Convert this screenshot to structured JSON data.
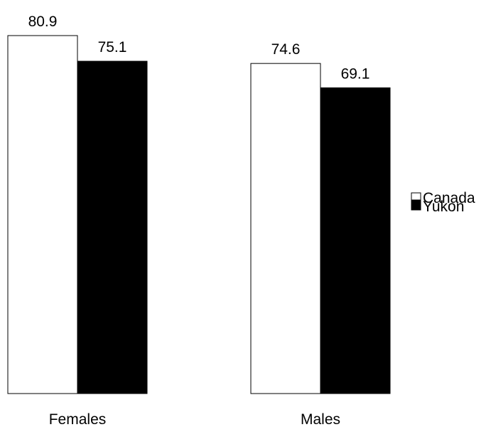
{
  "chart_data": {
    "type": "bar",
    "categories": [
      "Females",
      "Males"
    ],
    "series": [
      {
        "name": "Canada",
        "values": [
          80.9,
          74.6
        ],
        "color": "#ffffff"
      },
      {
        "name": "Yukon",
        "values": [
          75.1,
          69.1
        ],
        "color": "#000000"
      }
    ],
    "data_labels": [
      [
        "80.9",
        "74.6"
      ],
      [
        "75.1",
        "69.1"
      ]
    ],
    "title": "",
    "xlabel": "",
    "ylabel": "",
    "ylim": [
      0,
      80.9
    ],
    "grid": false,
    "legend_position": "right"
  }
}
